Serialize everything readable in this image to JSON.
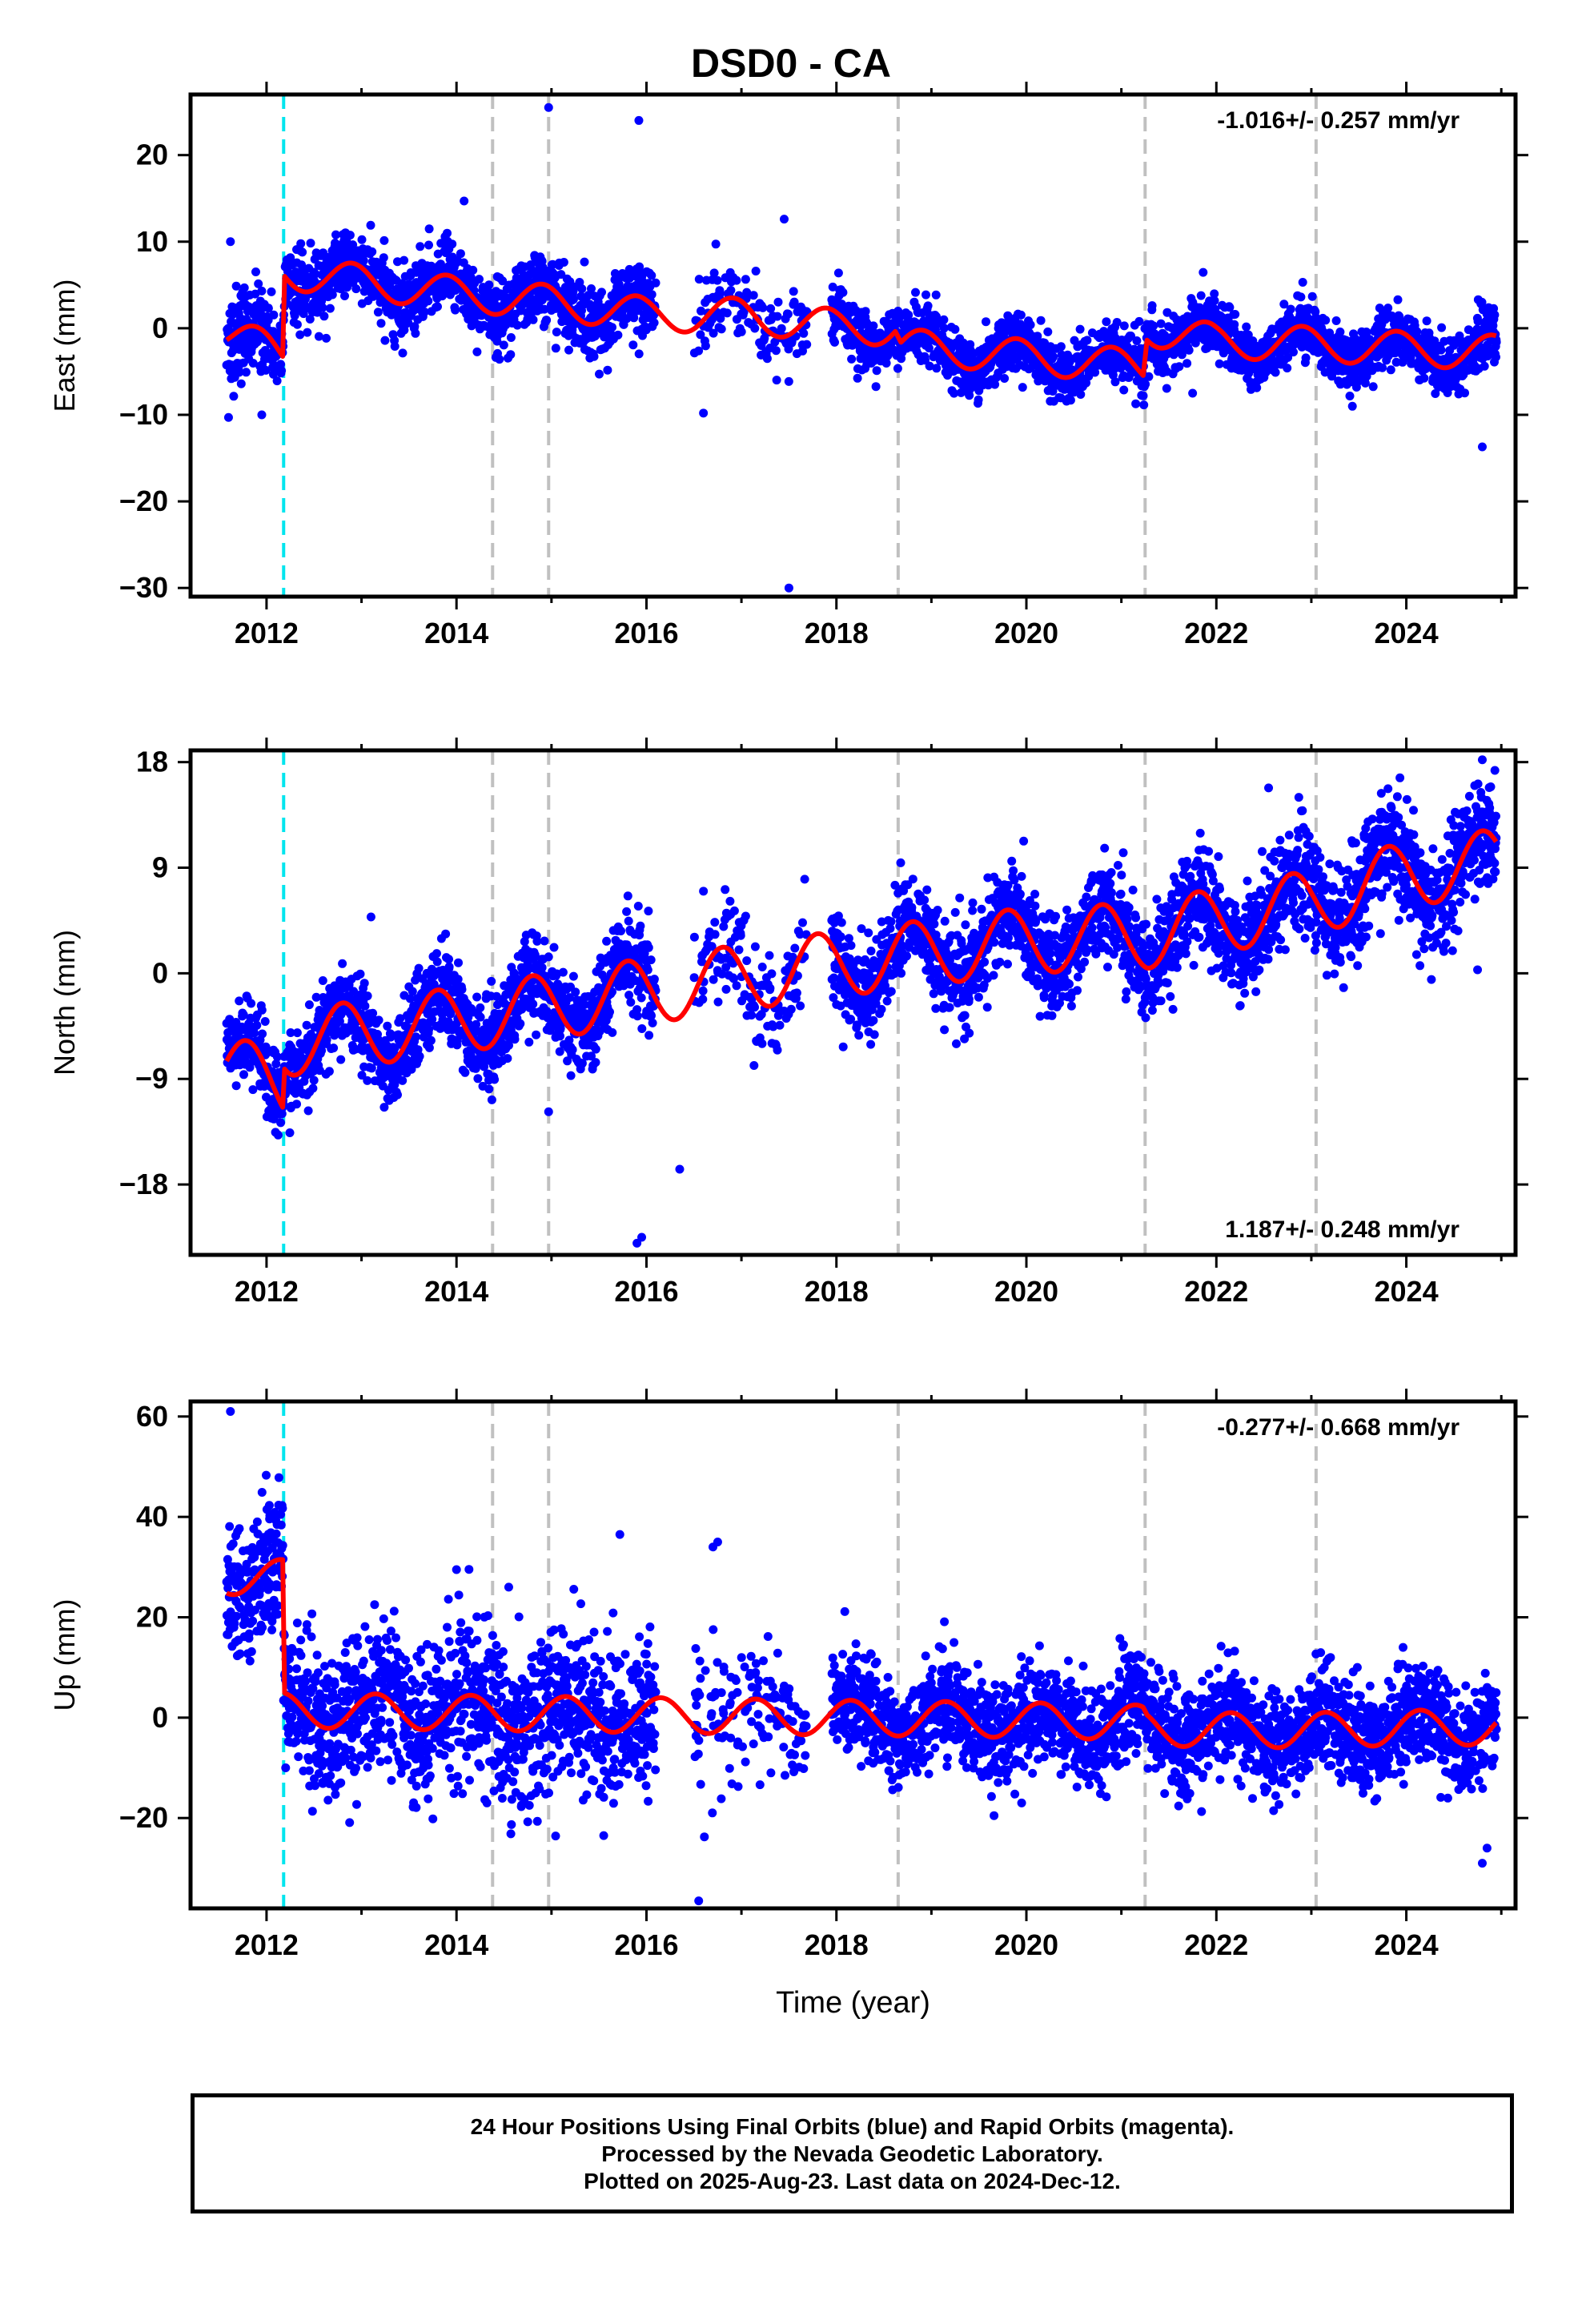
{
  "title": "DSD0 - CA",
  "colors": {
    "points": "#0000ff",
    "model": "#ff0000",
    "equipment_change": "#00e5ee",
    "other_event": "#c0c0c0"
  },
  "footer": {
    "line1": "24 Hour Positions Using Final Orbits (blue) and Rapid Orbits (magenta).",
    "line2": "Processed by the Nevada Geodetic Laboratory.",
    "line3": "Plotted on 2025-Aug-23. Last data on 2024-Dec-12."
  },
  "chart_data": [
    {
      "type": "scatter",
      "component": "east",
      "ylabel": "East (mm)",
      "xlabel": "",
      "rate_label": "-1.016+/- 0.257 mm/yr",
      "rate_position": "top-right",
      "xlim": [
        2011.2,
        2025.15
      ],
      "ylim": [
        -31,
        27
      ],
      "xticks": [
        2012,
        2014,
        2016,
        2018,
        2020,
        2022,
        2024
      ],
      "yticks": [
        -30,
        -20,
        -10,
        0,
        10,
        20
      ],
      "data_start": 2011.58,
      "data_end": 2024.95,
      "equipment_change": [
        2012.18
      ],
      "other_events": [
        2014.38,
        2014.97,
        2018.65,
        2021.25,
        2023.05
      ],
      "model": {
        "knots": [
          [
            2011.58,
            -0.5
          ],
          [
            2012.17,
            -3.0
          ],
          [
            2012.19,
            6.5
          ],
          [
            2014.0,
            4.0
          ],
          [
            2015.0,
            3.0
          ],
          [
            2016.0,
            1.6
          ],
          [
            2017.0,
            1.5
          ],
          [
            2018.0,
            0.2
          ],
          [
            2018.62,
            0.0
          ],
          [
            2018.68,
            -2.0
          ],
          [
            2020.0,
            -3.3
          ],
          [
            2021.23,
            -4.5
          ],
          [
            2021.27,
            0.0
          ],
          [
            2022.0,
            -1.5
          ],
          [
            2023.0,
            -1.8
          ],
          [
            2024.0,
            -2.4
          ],
          [
            2024.95,
            -2.8
          ]
        ],
        "annual_amplitude": 2.0,
        "annual_phase": 0.65
      },
      "scatter": {
        "noise_by_year": [
          [
            2011.58,
            2.8
          ],
          [
            2012.18,
            2.0
          ],
          [
            2016.0,
            2.0
          ],
          [
            2018.0,
            1.6
          ],
          [
            2024.95,
            1.6
          ]
        ],
        "gaps": [
          [
            2016.1,
            2016.5
          ],
          [
            2017.7,
            2017.95
          ]
        ],
        "sparse": [
          [
            2016.5,
            2017.7
          ]
        ],
        "outliers": [
          [
            2011.62,
            10.0
          ],
          [
            2011.6,
            -10.3
          ],
          [
            2011.95,
            -10.0
          ],
          [
            2014.08,
            14.7
          ],
          [
            2014.97,
            25.5
          ],
          [
            2015.92,
            24.0
          ],
          [
            2016.6,
            -9.8
          ],
          [
            2017.45,
            12.6
          ],
          [
            2017.5,
            -30.0
          ],
          [
            2021.75,
            -7.5
          ],
          [
            2024.8,
            -13.7
          ]
        ]
      }
    },
    {
      "type": "scatter",
      "component": "north",
      "ylabel": "North (mm)",
      "xlabel": "",
      "rate_label": "1.187+/- 0.248 mm/yr",
      "rate_position": "bottom-right",
      "xlim": [
        2011.2,
        2025.15
      ],
      "ylim": [
        -24,
        19
      ],
      "xticks": [
        2012,
        2014,
        2016,
        2018,
        2020,
        2022,
        2024
      ],
      "yticks": [
        -18,
        -9,
        0,
        9,
        18
      ],
      "data_start": 2011.58,
      "data_end": 2024.95,
      "equipment_change": [
        2012.18
      ],
      "other_events": [
        2014.38,
        2014.97,
        2018.65,
        2021.25,
        2023.05
      ],
      "model": {
        "knots": [
          [
            2011.58,
            -8.0
          ],
          [
            2012.17,
            -9.5
          ],
          [
            2012.19,
            -6.0
          ],
          [
            2014.0,
            -4.0
          ],
          [
            2016.0,
            -1.5
          ],
          [
            2018.0,
            0.8
          ],
          [
            2020.0,
            2.8
          ],
          [
            2021.23,
            3.2
          ],
          [
            2021.27,
            3.2
          ],
          [
            2022.0,
            4.5
          ],
          [
            2023.0,
            6.0
          ],
          [
            2024.0,
            8.5
          ],
          [
            2024.95,
            9.5
          ]
        ],
        "annual_amplitude": 2.8,
        "annual_phase": 0.55
      },
      "scatter": {
        "noise_by_year": [
          [
            2011.58,
            1.6
          ],
          [
            2016.0,
            2.0
          ],
          [
            2020.0,
            2.0
          ],
          [
            2024.95,
            2.4
          ]
        ],
        "gaps": [
          [
            2016.1,
            2016.5
          ],
          [
            2017.7,
            2017.95
          ]
        ],
        "sparse": [
          [
            2016.5,
            2017.7
          ]
        ],
        "outliers": [
          [
            2015.9,
            -23.0
          ],
          [
            2015.95,
            -22.5
          ],
          [
            2016.35,
            -16.7
          ],
          [
            2014.97,
            -11.8
          ],
          [
            2024.75,
            0.3
          ],
          [
            2024.8,
            18.2
          ],
          [
            2022.55,
            15.8
          ],
          [
            2024.72,
            16.0
          ],
          [
            2016.6,
            7.0
          ],
          [
            2013.1,
            4.8
          ]
        ]
      }
    },
    {
      "type": "scatter",
      "component": "up",
      "ylabel": "Up (mm)",
      "xlabel": "Time (year)",
      "rate_label": "-0.277+/- 0.668 mm/yr",
      "rate_position": "top-right",
      "xlim": [
        2011.2,
        2025.15
      ],
      "ylim": [
        -38,
        63
      ],
      "xticks": [
        2012,
        2014,
        2016,
        2018,
        2020,
        2022,
        2024
      ],
      "yticks": [
        -20,
        0,
        20,
        40,
        60
      ],
      "data_start": 2011.58,
      "data_end": 2024.95,
      "equipment_change": [
        2012.18
      ],
      "other_events": [
        2014.38,
        2014.97,
        2018.65,
        2021.25,
        2023.05
      ],
      "model": {
        "knots": [
          [
            2011.58,
            28.0
          ],
          [
            2012.17,
            28.0
          ],
          [
            2012.19,
            1.5
          ],
          [
            2014.0,
            1.0
          ],
          [
            2016.0,
            0.5
          ],
          [
            2018.0,
            0.0
          ],
          [
            2020.0,
            -0.5
          ],
          [
            2021.23,
            -1.0
          ],
          [
            2021.27,
            -2.0
          ],
          [
            2022.0,
            -2.5
          ],
          [
            2023.0,
            -2.5
          ],
          [
            2024.0,
            -2.0
          ],
          [
            2024.95,
            -2.0
          ]
        ],
        "annual_amplitude": 3.5,
        "annual_phase": 0.9
      },
      "scatter": {
        "noise_by_year": [
          [
            2011.58,
            5.5
          ],
          [
            2012.19,
            7.0
          ],
          [
            2014.0,
            8.0
          ],
          [
            2016.0,
            8.0
          ],
          [
            2017.0,
            5.0
          ],
          [
            2024.95,
            5.0
          ]
        ],
        "gaps": [
          [
            2016.1,
            2016.5
          ],
          [
            2017.7,
            2017.95
          ]
        ],
        "sparse": [
          [
            2016.5,
            2017.7
          ]
        ],
        "outliers": [
          [
            2011.62,
            61.0
          ],
          [
            2016.75,
            35.0
          ],
          [
            2016.7,
            34.0
          ],
          [
            2015.72,
            36.5
          ],
          [
            2016.55,
            -36.5
          ],
          [
            2015.55,
            -23.5
          ],
          [
            2024.8,
            -29.0
          ],
          [
            2024.85,
            -26.0
          ],
          [
            2014.0,
            29.5
          ],
          [
            2014.55,
            26.0
          ],
          [
            2019.95,
            -17.0
          ]
        ]
      }
    }
  ]
}
